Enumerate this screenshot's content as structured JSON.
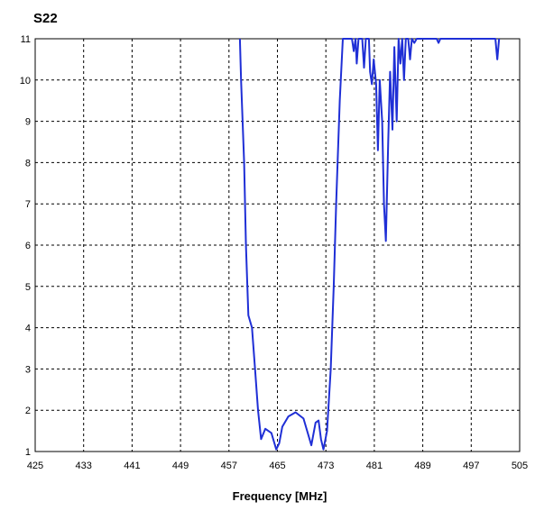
{
  "chart_data": {
    "type": "line",
    "title": "S22",
    "xlabel": "Frequency [MHz]",
    "ylabel": "",
    "xlim": [
      425,
      505
    ],
    "ylim": [
      1,
      11
    ],
    "x_ticks": [
      425,
      433,
      441,
      449,
      457,
      465,
      473,
      481,
      489,
      497,
      505
    ],
    "x_tick_labels": [
      "425",
      "433",
      "441",
      "449",
      "457",
      "465",
      "473",
      "481",
      "489",
      "497",
      "505"
    ],
    "y_ticks": [
      1,
      2,
      3,
      4,
      5,
      6,
      7,
      8,
      9,
      10,
      11
    ],
    "y_tick_labels": [
      "1",
      "2",
      "3",
      "4",
      "5",
      "6",
      "7",
      "8",
      "9",
      "10",
      "11"
    ],
    "grid": true,
    "series": [
      {
        "color": "#1f2fd6",
        "points": [
          [
            458.8,
            11.0
          ],
          [
            459.0,
            10.0
          ],
          [
            459.5,
            8.0
          ],
          [
            459.8,
            6.0
          ],
          [
            460.2,
            4.3
          ],
          [
            460.8,
            4.0
          ],
          [
            461.3,
            3.0
          ],
          [
            461.8,
            2.0
          ],
          [
            462.3,
            1.3
          ],
          [
            463.0,
            1.55
          ],
          [
            464.0,
            1.45
          ],
          [
            464.8,
            1.05
          ],
          [
            465.3,
            1.2
          ],
          [
            465.8,
            1.6
          ],
          [
            466.8,
            1.85
          ],
          [
            468.0,
            1.95
          ],
          [
            469.3,
            1.8
          ],
          [
            470.0,
            1.45
          ],
          [
            470.6,
            1.15
          ],
          [
            471.3,
            1.7
          ],
          [
            471.8,
            1.75
          ],
          [
            472.2,
            1.3
          ],
          [
            472.6,
            1.05
          ],
          [
            473.2,
            1.5
          ],
          [
            473.8,
            3.0
          ],
          [
            474.3,
            5.0
          ],
          [
            474.7,
            7.0
          ],
          [
            475.3,
            9.5
          ],
          [
            475.8,
            11.0
          ],
          [
            477.3,
            11.0
          ],
          [
            477.6,
            10.7
          ],
          [
            477.9,
            11.0
          ],
          [
            478.1,
            10.4
          ],
          [
            478.4,
            11.0
          ],
          [
            479.0,
            11.0
          ],
          [
            479.3,
            10.3
          ],
          [
            479.6,
            11.0
          ],
          [
            480.1,
            11.0
          ],
          [
            480.3,
            10.2
          ],
          [
            480.6,
            9.9
          ],
          [
            480.9,
            10.5
          ],
          [
            481.3,
            9.9
          ],
          [
            481.6,
            8.3
          ],
          [
            481.9,
            10.0
          ],
          [
            482.3,
            9.0
          ],
          [
            482.6,
            7.0
          ],
          [
            482.9,
            6.1
          ],
          [
            483.3,
            8.5
          ],
          [
            483.6,
            10.2
          ],
          [
            484.0,
            8.8
          ],
          [
            484.3,
            10.8
          ],
          [
            484.7,
            9.0
          ],
          [
            485.0,
            11.0
          ],
          [
            485.3,
            10.4
          ],
          [
            485.6,
            11.0
          ],
          [
            485.9,
            10.0
          ],
          [
            486.2,
            11.0
          ],
          [
            486.6,
            11.0
          ],
          [
            486.9,
            10.5
          ],
          [
            487.2,
            11.0
          ],
          [
            487.6,
            10.9
          ],
          [
            488.0,
            11.0
          ],
          [
            491.3,
            11.0
          ],
          [
            491.6,
            10.9
          ],
          [
            491.9,
            11.0
          ],
          [
            501.0,
            11.0
          ],
          [
            501.3,
            10.5
          ],
          [
            501.6,
            11.0
          ]
        ]
      }
    ]
  }
}
